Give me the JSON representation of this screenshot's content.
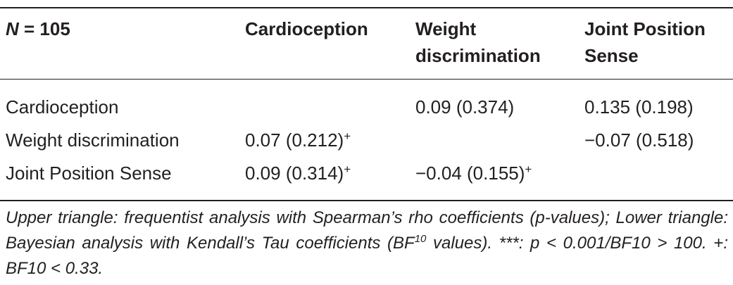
{
  "table": {
    "header": {
      "n_prefix": "N",
      "n_value": " = 105",
      "col1": "Cardioception",
      "col2_line1": "Weight",
      "col2_line2": "discrimination",
      "col3_line1": "Joint Position",
      "col3_line2": "Sense"
    },
    "rows": [
      {
        "label": "Cardioception",
        "c1": "",
        "c1_mark": "",
        "c2": "0.09 (0.374)",
        "c2_mark": "",
        "c3": "0.135 (0.198)"
      },
      {
        "label": "Weight discrimination",
        "c1": "0.07 (0.212)",
        "c1_mark": "+",
        "c2": "",
        "c2_mark": "",
        "c3": "−0.07 (0.518)"
      },
      {
        "label": "Joint Position Sense",
        "c1": "0.09 (0.314)",
        "c1_mark": "+",
        "c2": "−0.04 (0.155)",
        "c2_mark": "+",
        "c3": ""
      }
    ]
  },
  "footnote": {
    "part1": "Upper triangle: frequentist analysis with Spearman’s rho coefficients (p-values); Lower triangle: Bayesian analysis with Kendall’s Tau coefficients (BF",
    "sup": "10",
    "part2": " values). ***: p < 0.001/BF10 > 100. +: BF10 < 0.33."
  }
}
